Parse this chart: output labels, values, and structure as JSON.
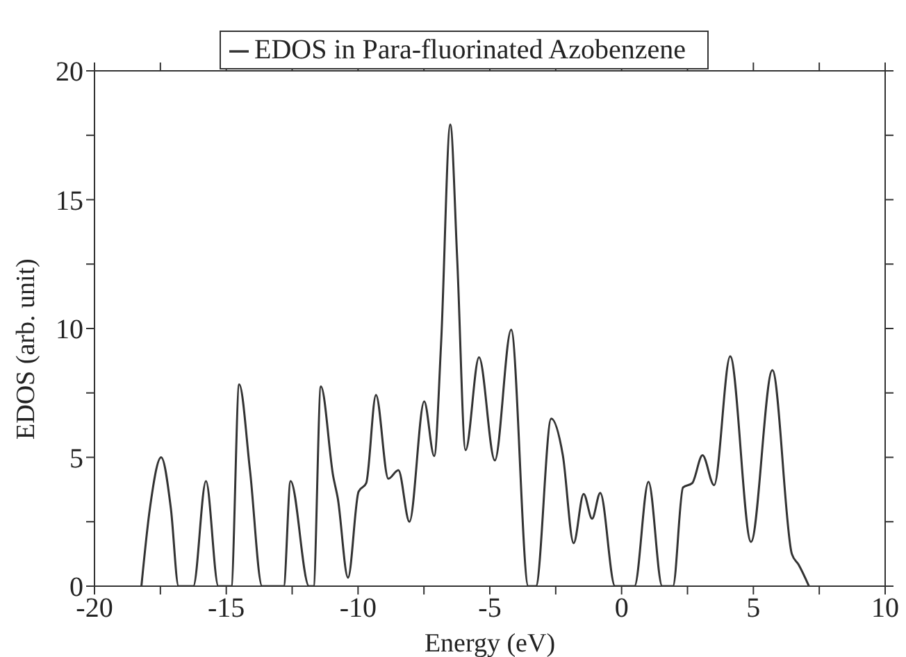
{
  "chart_data": {
    "type": "line",
    "xlabel": "Energy (eV)",
    "ylabel": "EDOS (arb. unit)",
    "x": [
      -18.22,
      -17.9,
      -17.47,
      -17.1,
      -16.81,
      -16.25,
      -15.77,
      -15.3,
      -14.81,
      -14.51,
      -14.1,
      -13.64,
      -12.82,
      -12.56,
      -11.86,
      -11.69,
      -11.41,
      -10.94,
      -10.77,
      -10.38,
      -9.98,
      -9.69,
      -9.32,
      -8.85,
      -8.47,
      -8.05,
      -7.49,
      -7.11,
      -6.85,
      -6.5,
      -6.24,
      -5.92,
      -5.41,
      -4.81,
      -4.19,
      -3.54,
      -3.25,
      -2.67,
      -2.23,
      -1.82,
      -1.44,
      -1.12,
      -0.81,
      -0.25,
      0.49,
      1.02,
      1.54,
      1.95,
      2.33,
      2.68,
      3.07,
      3.51,
      4.12,
      4.91,
      5.72,
      6.46,
      6.72,
      7.11
    ],
    "series": [
      {
        "name": "EDOS in Para-fluorinated Azobenzene",
        "color": "#333333",
        "values": [
          0,
          3.0,
          5.0,
          3.0,
          0,
          0,
          4.08,
          0,
          0,
          7.83,
          4.5,
          0,
          0,
          4.08,
          0,
          0,
          7.75,
          4.25,
          3.42,
          0.33,
          3.67,
          4.0,
          7.42,
          4.17,
          4.5,
          2.5,
          7.17,
          5.05,
          9.4,
          17.92,
          12.75,
          5.28,
          8.88,
          4.88,
          9.95,
          0,
          0,
          6.5,
          5.08,
          1.67,
          3.58,
          2.62,
          3.62,
          0,
          0,
          4.05,
          0,
          0,
          3.83,
          4.0,
          5.08,
          3.92,
          8.92,
          1.72,
          8.38,
          1.25,
          0.83,
          0
        ]
      }
    ],
    "xlim": [
      -20,
      10
    ],
    "xticks": [
      -20,
      {
        "value": -17.5,
        "label": null
      },
      -15,
      {
        "value": -12.5,
        "label": null
      },
      -10,
      {
        "value": -7.5,
        "label": null
      },
      -5,
      {
        "value": -2.5,
        "label": null
      },
      0,
      {
        "value": 2.5,
        "label": null
      },
      5,
      {
        "value": 7.5,
        "label": null
      },
      10
    ],
    "ylim": [
      0,
      20
    ],
    "yticks": [
      0,
      {
        "value": 2.5,
        "label": null
      },
      5,
      {
        "value": 7.5,
        "label": null
      },
      10,
      {
        "value": 12.5,
        "label": null
      },
      15,
      {
        "value": 17.5,
        "label": null
      },
      20
    ],
    "grid": false,
    "legend": "top",
    "marker": "none",
    "line_style": "solid"
  }
}
